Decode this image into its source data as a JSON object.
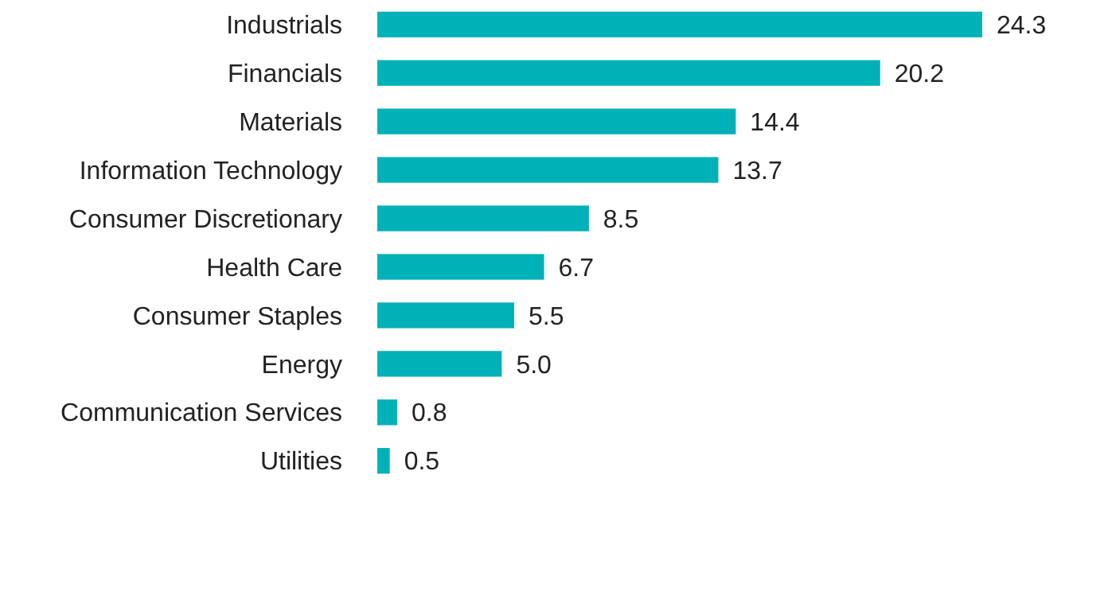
{
  "chart_data": {
    "type": "bar",
    "orientation": "horizontal",
    "categories": [
      "Industrials",
      "Financials",
      "Materials",
      "Information Technology",
      "Consumer Discretionary",
      "Health Care",
      "Consumer Staples",
      "Energy",
      "Communication Services",
      "Utilities"
    ],
    "values": [
      24.3,
      20.2,
      14.4,
      13.7,
      8.5,
      6.7,
      5.5,
      5.0,
      0.8,
      0.5
    ],
    "value_labels": [
      "24.3",
      "20.2",
      "14.4",
      "13.7",
      "8.5",
      "6.7",
      "5.5",
      "5.0",
      "0.8",
      "0.5"
    ],
    "color": "#00b2b8"
  }
}
